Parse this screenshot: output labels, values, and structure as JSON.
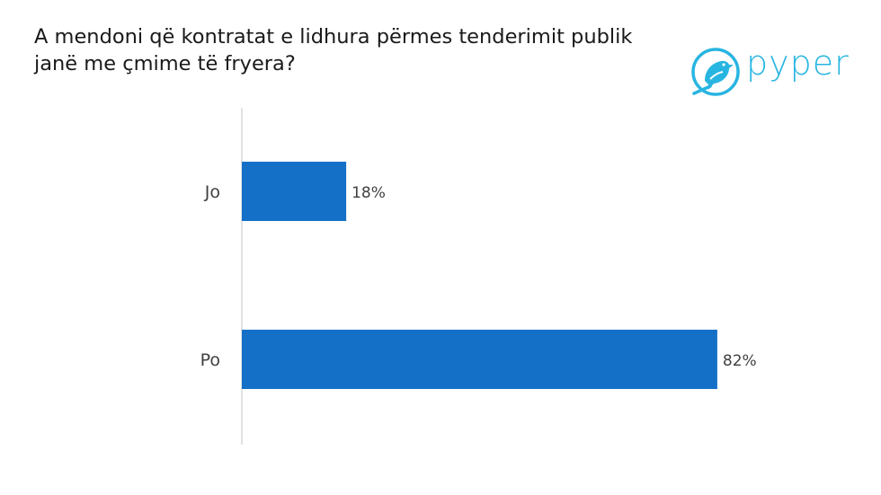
{
  "title": "A mendoni që kontratat e lidhura përmes tenderimit publik janë me çmime të fryera?",
  "logo": {
    "name": "pyper",
    "icon": "bird-icon",
    "color": "#28b5e1"
  },
  "chart_data": {
    "type": "bar",
    "orientation": "horizontal",
    "categories": [
      "Jo",
      "Po"
    ],
    "values": [
      18,
      82
    ],
    "value_labels": [
      "18%",
      "82%"
    ],
    "unit": "%",
    "xlim": [
      0,
      100
    ],
    "grid": false,
    "bar_color": "#1470c7",
    "axis_color": "#d9d9d9"
  }
}
